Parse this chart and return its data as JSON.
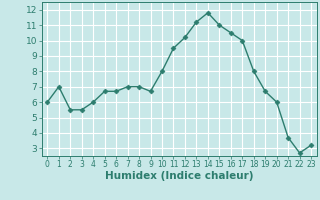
{
  "x": [
    0,
    1,
    2,
    3,
    4,
    5,
    6,
    7,
    8,
    9,
    10,
    11,
    12,
    13,
    14,
    15,
    16,
    17,
    18,
    19,
    20,
    21,
    22,
    23
  ],
  "y": [
    6.0,
    7.0,
    5.5,
    5.5,
    6.0,
    6.7,
    6.7,
    7.0,
    7.0,
    6.7,
    8.0,
    9.5,
    10.2,
    11.2,
    11.8,
    11.0,
    10.5,
    10.0,
    8.0,
    6.7,
    6.0,
    3.7,
    2.7,
    3.2
  ],
  "xlabel": "Humidex (Indice chaleur)",
  "ylim": [
    2.5,
    12.5
  ],
  "xlim": [
    -0.5,
    23.5
  ],
  "yticks": [
    3,
    4,
    5,
    6,
    7,
    8,
    9,
    10,
    11,
    12
  ],
  "xticks": [
    0,
    1,
    2,
    3,
    4,
    5,
    6,
    7,
    8,
    9,
    10,
    11,
    12,
    13,
    14,
    15,
    16,
    17,
    18,
    19,
    20,
    21,
    22,
    23
  ],
  "line_color": "#2d7d6e",
  "marker_color": "#2d7d6e",
  "bg_color": "#c8e8e8",
  "grid_color": "#ffffff",
  "xlabel_color": "#2d7d6e",
  "tick_color": "#2d7d6e",
  "xlabel_fontsize": 7.5,
  "ytick_fontsize": 6.5,
  "xtick_fontsize": 5.5
}
